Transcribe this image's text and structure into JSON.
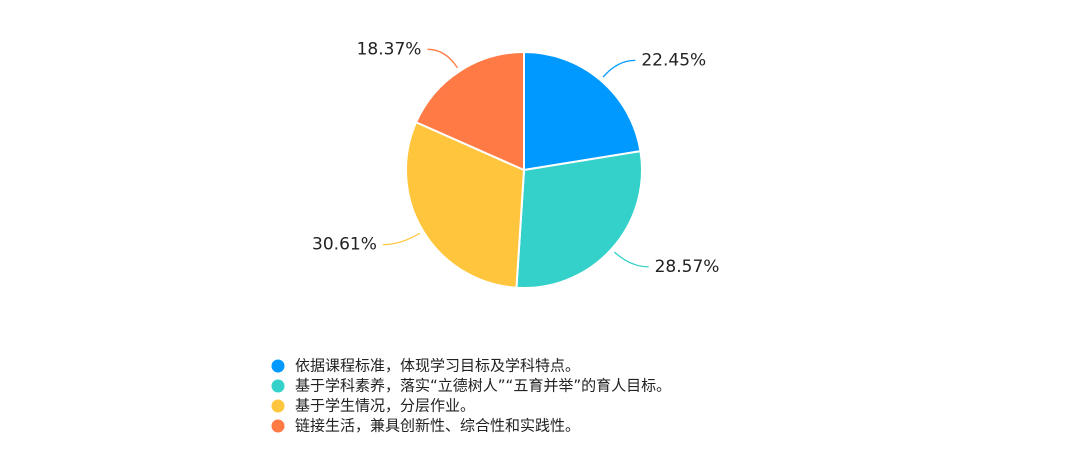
{
  "chart_data": {
    "type": "pie",
    "title": "",
    "legend_position": "bottom-left",
    "slices": [
      {
        "label": "依据课程标准，体现学习目标及学科特点。",
        "value": 22.45,
        "value_label": "22.45%",
        "color": "#0099FF"
      },
      {
        "label": "基于学科素养，落实“立德树人”“五育并举”的育人目标。",
        "value": 28.57,
        "value_label": "28.57%",
        "color": "#33D1C9"
      },
      {
        "label": "基于学生情况，分层作业。",
        "value": 30.61,
        "value_label": "30.61%",
        "color": "#FFC53D"
      },
      {
        "label": "链接生活，兼具创新性、综合性和实践性。",
        "value": 18.37,
        "value_label": "18.37%",
        "color": "#FF7A45"
      }
    ]
  }
}
